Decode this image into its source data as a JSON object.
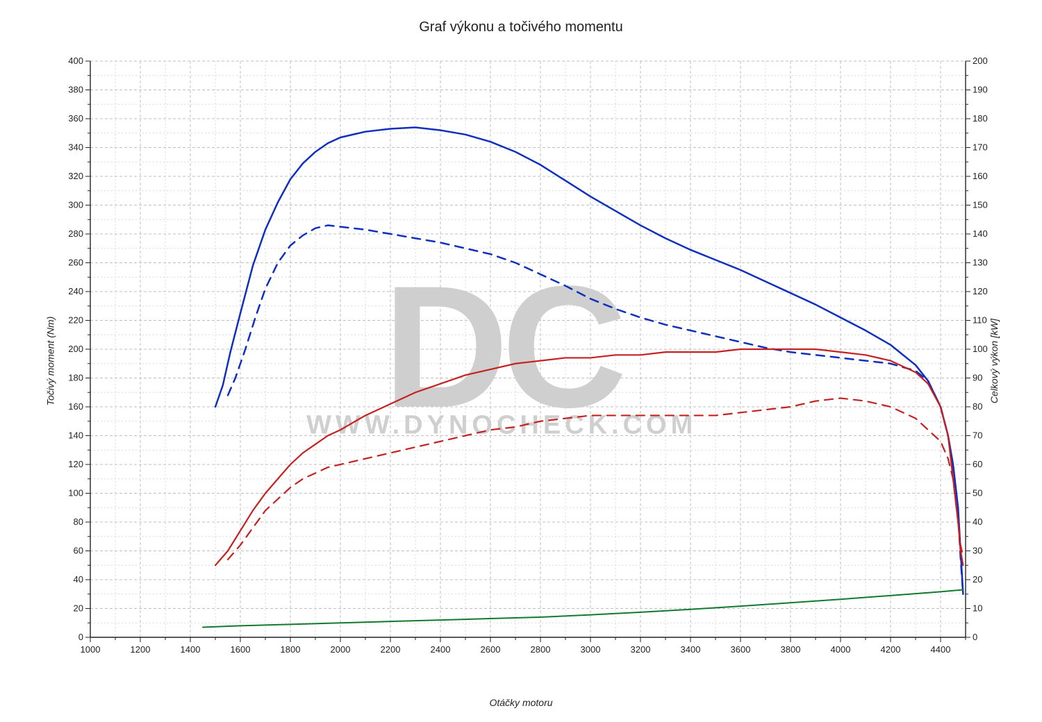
{
  "chart": {
    "type": "line",
    "title": "Graf výkonu a točivého momentu",
    "title_fontsize": 20,
    "background_color": "#ffffff",
    "plot_background_color": "#ffffff",
    "grid_color_major": "#bfbfbf",
    "grid_color_minor": "#d9d9d9",
    "grid_dash_major": "4 3",
    "grid_dash_minor": "2 3",
    "axis_color": "#222222",
    "font_family": "Arial",
    "x_axis": {
      "label": "Otáčky motoru",
      "min": 1000,
      "max": 4500,
      "major_step": 200,
      "minor_step": 100,
      "label_fontsize": 14,
      "tick_fontsize": 13
    },
    "y_left": {
      "label": "Točivý moment (Nm)",
      "min": 0,
      "max": 400,
      "major_step": 20,
      "minor_step": 10,
      "label_fontsize": 14,
      "tick_fontsize": 13
    },
    "y_right": {
      "label": "Celkový výkon [kW]",
      "min": 0,
      "max": 200,
      "major_step": 10,
      "minor_step": 5,
      "label_fontsize": 14,
      "tick_fontsize": 13
    },
    "watermark": {
      "big_text": "DC",
      "big_color": "#cfcfcf",
      "big_fontsize": 250,
      "sub_text": "WWW.DYNOCHECK.COM",
      "sub_color": "#cfcfcf",
      "sub_fontsize": 38
    },
    "series": [
      {
        "name": "torque_tuned",
        "axis": "left",
        "color": "#0f2fbf",
        "line_width": 2.5,
        "dash": null,
        "data": [
          [
            1500,
            160
          ],
          [
            1530,
            175
          ],
          [
            1560,
            198
          ],
          [
            1600,
            225
          ],
          [
            1650,
            258
          ],
          [
            1700,
            283
          ],
          [
            1750,
            302
          ],
          [
            1800,
            318
          ],
          [
            1850,
            329
          ],
          [
            1900,
            337
          ],
          [
            1950,
            343
          ],
          [
            2000,
            347
          ],
          [
            2100,
            351
          ],
          [
            2200,
            353
          ],
          [
            2300,
            354
          ],
          [
            2400,
            352
          ],
          [
            2500,
            349
          ],
          [
            2600,
            344
          ],
          [
            2700,
            337
          ],
          [
            2800,
            328
          ],
          [
            2900,
            317
          ],
          [
            3000,
            306
          ],
          [
            3100,
            296
          ],
          [
            3200,
            286
          ],
          [
            3300,
            277
          ],
          [
            3400,
            269
          ],
          [
            3500,
            262
          ],
          [
            3600,
            255
          ],
          [
            3700,
            247
          ],
          [
            3800,
            239
          ],
          [
            3900,
            231
          ],
          [
            4000,
            222
          ],
          [
            4100,
            213
          ],
          [
            4200,
            203
          ],
          [
            4300,
            189
          ],
          [
            4350,
            178
          ],
          [
            4400,
            160
          ],
          [
            4430,
            140
          ],
          [
            4450,
            120
          ],
          [
            4470,
            90
          ],
          [
            4480,
            60
          ],
          [
            4490,
            30
          ]
        ]
      },
      {
        "name": "torque_stock",
        "axis": "left",
        "color": "#0f2fbf",
        "line_width": 2.5,
        "dash": "12 9",
        "data": [
          [
            1550,
            168
          ],
          [
            1580,
            180
          ],
          [
            1620,
            200
          ],
          [
            1660,
            222
          ],
          [
            1700,
            242
          ],
          [
            1750,
            260
          ],
          [
            1800,
            272
          ],
          [
            1850,
            279
          ],
          [
            1900,
            284
          ],
          [
            1950,
            286
          ],
          [
            2000,
            285
          ],
          [
            2100,
            283
          ],
          [
            2200,
            280
          ],
          [
            2300,
            277
          ],
          [
            2400,
            274
          ],
          [
            2500,
            270
          ],
          [
            2600,
            266
          ],
          [
            2700,
            260
          ],
          [
            2800,
            252
          ],
          [
            2900,
            244
          ],
          [
            3000,
            235
          ],
          [
            3100,
            228
          ],
          [
            3200,
            222
          ],
          [
            3300,
            217
          ],
          [
            3400,
            213
          ],
          [
            3500,
            209
          ],
          [
            3600,
            205
          ],
          [
            3700,
            201
          ],
          [
            3800,
            198
          ],
          [
            3900,
            196
          ],
          [
            4000,
            194
          ],
          [
            4100,
            192
          ],
          [
            4200,
            190
          ],
          [
            4300,
            185
          ],
          [
            4350,
            178
          ],
          [
            4400,
            160
          ],
          [
            4430,
            140
          ],
          [
            4450,
            115
          ],
          [
            4470,
            85
          ],
          [
            4480,
            55
          ],
          [
            4490,
            30
          ]
        ]
      },
      {
        "name": "power_tuned",
        "axis": "right",
        "color": "#c62020",
        "line_width": 2.2,
        "dash": null,
        "data": [
          [
            1500,
            25
          ],
          [
            1550,
            30
          ],
          [
            1600,
            37
          ],
          [
            1650,
            44
          ],
          [
            1700,
            50
          ],
          [
            1750,
            55
          ],
          [
            1800,
            60
          ],
          [
            1850,
            64
          ],
          [
            1900,
            67
          ],
          [
            1950,
            70
          ],
          [
            2000,
            72
          ],
          [
            2100,
            77
          ],
          [
            2200,
            81
          ],
          [
            2300,
            85
          ],
          [
            2400,
            88
          ],
          [
            2500,
            91
          ],
          [
            2600,
            93
          ],
          [
            2700,
            95
          ],
          [
            2800,
            96
          ],
          [
            2900,
            97
          ],
          [
            3000,
            97
          ],
          [
            3100,
            98
          ],
          [
            3200,
            98
          ],
          [
            3300,
            99
          ],
          [
            3400,
            99
          ],
          [
            3500,
            99
          ],
          [
            3600,
            100
          ],
          [
            3700,
            100
          ],
          [
            3800,
            100
          ],
          [
            3900,
            100
          ],
          [
            4000,
            99
          ],
          [
            4100,
            98
          ],
          [
            4200,
            96
          ],
          [
            4300,
            92
          ],
          [
            4350,
            88
          ],
          [
            4400,
            80
          ],
          [
            4430,
            70
          ],
          [
            4450,
            55
          ],
          [
            4470,
            40
          ],
          [
            4480,
            30
          ],
          [
            4490,
            25
          ]
        ]
      },
      {
        "name": "power_stock",
        "axis": "right",
        "color": "#c62020",
        "line_width": 2.2,
        "dash": "12 9",
        "data": [
          [
            1550,
            27
          ],
          [
            1600,
            32
          ],
          [
            1650,
            38
          ],
          [
            1700,
            44
          ],
          [
            1750,
            48
          ],
          [
            1800,
            52
          ],
          [
            1850,
            55
          ],
          [
            1900,
            57
          ],
          [
            1950,
            59
          ],
          [
            2000,
            60
          ],
          [
            2100,
            62
          ],
          [
            2200,
            64
          ],
          [
            2300,
            66
          ],
          [
            2400,
            68
          ],
          [
            2500,
            70
          ],
          [
            2600,
            72
          ],
          [
            2700,
            73
          ],
          [
            2800,
            75
          ],
          [
            2900,
            76
          ],
          [
            3000,
            77
          ],
          [
            3100,
            77
          ],
          [
            3200,
            77
          ],
          [
            3300,
            77
          ],
          [
            3400,
            77
          ],
          [
            3500,
            77
          ],
          [
            3600,
            78
          ],
          [
            3700,
            79
          ],
          [
            3800,
            80
          ],
          [
            3900,
            82
          ],
          [
            4000,
            83
          ],
          [
            4100,
            82
          ],
          [
            4200,
            80
          ],
          [
            4300,
            76
          ],
          [
            4350,
            72
          ],
          [
            4400,
            68
          ],
          [
            4430,
            62
          ],
          [
            4450,
            55
          ],
          [
            4470,
            40
          ],
          [
            4480,
            32
          ],
          [
            4490,
            28
          ]
        ]
      },
      {
        "name": "loss",
        "axis": "right",
        "color": "#117a2e",
        "line_width": 2.0,
        "dash": null,
        "data": [
          [
            1450,
            3.5
          ],
          [
            1600,
            4
          ],
          [
            1800,
            4.5
          ],
          [
            2000,
            5
          ],
          [
            2200,
            5.5
          ],
          [
            2400,
            6
          ],
          [
            2600,
            6.5
          ],
          [
            2800,
            7
          ],
          [
            3000,
            7.8
          ],
          [
            3200,
            8.7
          ],
          [
            3400,
            9.7
          ],
          [
            3600,
            10.8
          ],
          [
            3800,
            12
          ],
          [
            4000,
            13.2
          ],
          [
            4200,
            14.5
          ],
          [
            4400,
            15.8
          ],
          [
            4490,
            16.5
          ]
        ]
      }
    ]
  }
}
